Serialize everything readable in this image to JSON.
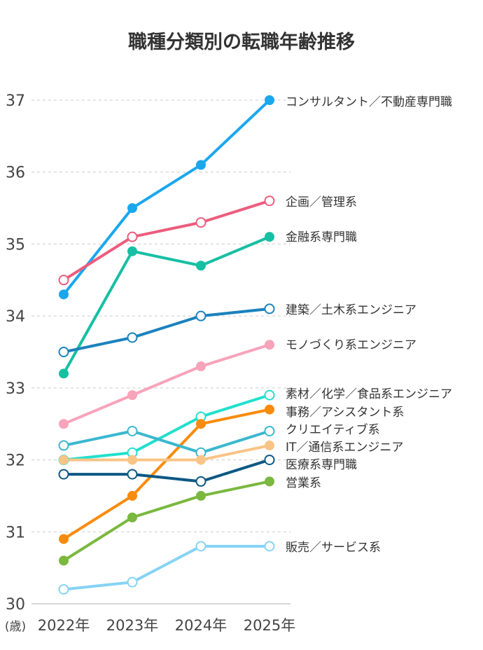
{
  "chart_data": {
    "type": "line",
    "title": "職種分類別の転職年齢推移",
    "ylabel": "(歳)",
    "xlabel": "",
    "categories": [
      "2022年",
      "2023年",
      "2024年",
      "2025年"
    ],
    "ylim": [
      30,
      37
    ],
    "yticks": [
      30,
      31,
      32,
      33,
      34,
      35,
      36,
      37
    ],
    "grid": "horizontal dashed",
    "legend": "right (labels at line ends)",
    "series": [
      {
        "name": "コンサルタント／不動産専門職",
        "values": [
          34.3,
          35.5,
          36.1,
          37.0
        ],
        "color": "#1aa7ee",
        "marker": "filled"
      },
      {
        "name": "企画／管理系",
        "values": [
          34.5,
          35.1,
          35.3,
          35.6
        ],
        "color": "#ec5d7d",
        "marker": "hollow"
      },
      {
        "name": "金融系専門職",
        "values": [
          33.2,
          34.9,
          34.7,
          35.1
        ],
        "color": "#17bfa3",
        "marker": "filled"
      },
      {
        "name": "建築／土木系エンジニア",
        "values": [
          33.5,
          33.7,
          34.0,
          34.1
        ],
        "color": "#1a82bd",
        "marker": "hollow"
      },
      {
        "name": "モノづくり系エンジニア",
        "values": [
          32.5,
          32.9,
          33.3,
          33.6
        ],
        "color": "#f7a3ba",
        "marker": "filled"
      },
      {
        "name": "素材／化学／食品系エンジニア",
        "values": [
          32.0,
          32.1,
          32.6,
          32.9
        ],
        "color": "#22e0cc",
        "marker": "hollow"
      },
      {
        "name": "事務／アシスタント系",
        "values": [
          30.9,
          31.5,
          32.5,
          32.7
        ],
        "color": "#f88b0c",
        "marker": "filled"
      },
      {
        "name": "クリエイティブ系",
        "values": [
          32.2,
          32.4,
          32.1,
          32.4
        ],
        "color": "#3ab8cf",
        "marker": "hollow"
      },
      {
        "name": "IT／通信系エンジニア",
        "values": [
          32.0,
          32.0,
          32.0,
          32.2
        ],
        "color": "#f9c487",
        "marker": "filled"
      },
      {
        "name": "医療系専門職",
        "values": [
          31.8,
          31.8,
          31.7,
          32.0
        ],
        "color": "#0b5883",
        "marker": "hollow"
      },
      {
        "name": "営業系",
        "values": [
          30.6,
          31.2,
          31.5,
          31.7
        ],
        "color": "#7ab83e",
        "marker": "filled"
      },
      {
        "name": "販売／サービス系",
        "values": [
          30.2,
          30.3,
          30.8,
          30.8
        ],
        "color": "#86d3f4",
        "marker": "hollow"
      }
    ]
  }
}
